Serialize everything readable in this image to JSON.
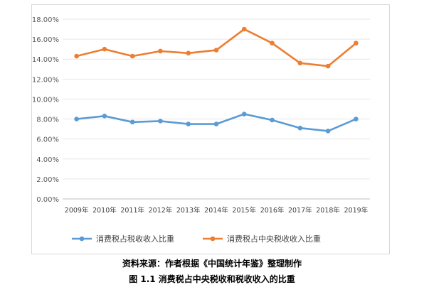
{
  "source_note": "资料来源：作者根据《中国统计年鉴》整理制作",
  "figure_caption": "图 1.1 消费税占中央税收和税收收入的比重",
  "chart_data": {
    "type": "line",
    "title": "",
    "xlabel": "",
    "ylabel": "",
    "categories": [
      "2009年",
      "2010年",
      "2011年",
      "2012年",
      "2013年",
      "2014年",
      "2015年",
      "2016年",
      "2017年",
      "2018年",
      "2019年"
    ],
    "y_tick_labels": [
      "0.00%",
      "2.00%",
      "4.00%",
      "6.00%",
      "8.00%",
      "10.00%",
      "12.00%",
      "14.00%",
      "16.00%",
      "18.00%"
    ],
    "ylim": [
      0,
      18
    ],
    "y_step": 2,
    "y_unit": "%",
    "grid": true,
    "legend_position": "bottom",
    "series": [
      {
        "name": "消费税占税收收入比重",
        "color": "#5b9bd5",
        "values": [
          8.0,
          8.3,
          7.7,
          7.8,
          7.5,
          7.5,
          8.5,
          7.9,
          7.1,
          6.8,
          8.0
        ]
      },
      {
        "name": "消费税占中央税收收入比重",
        "color": "#ed7d31",
        "values": [
          14.3,
          15.0,
          14.3,
          14.8,
          14.6,
          14.9,
          17.0,
          15.6,
          13.6,
          13.3,
          15.6
        ]
      }
    ]
  }
}
